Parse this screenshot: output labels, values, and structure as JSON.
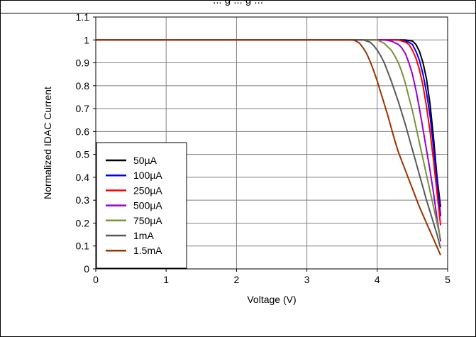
{
  "chart_data": {
    "type": "line",
    "title": "... g ... g ...",
    "xlabel": "Voltage (V)",
    "ylabel": "Normalized IDAC Current",
    "xlim": [
      0,
      5
    ],
    "ylim": [
      0,
      1.1
    ],
    "x_ticks": [
      "0",
      "1",
      "2",
      "3",
      "4",
      "5"
    ],
    "y_ticks": [
      "0",
      "0.1",
      "0.2",
      "0.3",
      "0.4",
      "0.5",
      "0.6",
      "0.7",
      "0.8",
      "0.9",
      "1",
      "1.1"
    ],
    "grid": true,
    "legend_position": "bottom-left",
    "series": [
      {
        "name": "50µA",
        "color": "#000000",
        "x": [
          0,
          4.2,
          4.3,
          4.4,
          4.5,
          4.55,
          4.6,
          4.65,
          4.7,
          4.75,
          4.8,
          4.85,
          4.9
        ],
        "y": [
          1,
          1,
          1,
          1,
          0.995,
          0.98,
          0.95,
          0.9,
          0.83,
          0.72,
          0.57,
          0.4,
          0.27
        ]
      },
      {
        "name": "100µA",
        "color": "#0000ff",
        "x": [
          0,
          4.15,
          4.25,
          4.35,
          4.45,
          4.5,
          4.55,
          4.6,
          4.65,
          4.7,
          4.75,
          4.8,
          4.85,
          4.9
        ],
        "y": [
          1,
          1,
          1,
          1,
          0.99,
          0.98,
          0.95,
          0.91,
          0.85,
          0.77,
          0.67,
          0.53,
          0.38,
          0.23
        ]
      },
      {
        "name": "250µA",
        "color": "#ff0000",
        "x": [
          0,
          4.1,
          4.2,
          4.3,
          4.4,
          4.45,
          4.5,
          4.55,
          4.6,
          4.65,
          4.7,
          4.75,
          4.8,
          4.85,
          4.9
        ],
        "y": [
          1,
          1,
          1,
          1,
          0.99,
          0.98,
          0.955,
          0.92,
          0.87,
          0.8,
          0.71,
          0.6,
          0.47,
          0.33,
          0.19
        ]
      },
      {
        "name": "500µA",
        "color": "#9900cc",
        "x": [
          0,
          4.0,
          4.1,
          4.2,
          4.3,
          4.35,
          4.4,
          4.45,
          4.5,
          4.55,
          4.6,
          4.65,
          4.7,
          4.75,
          4.8,
          4.85,
          4.9
        ],
        "y": [
          1,
          1,
          1,
          0.995,
          0.98,
          0.965,
          0.94,
          0.9,
          0.85,
          0.78,
          0.7,
          0.61,
          0.52,
          0.43,
          0.33,
          0.22,
          0.12
        ]
      },
      {
        "name": "750µA",
        "color": "#77933c",
        "x": [
          0,
          3.9,
          4.0,
          4.1,
          4.2,
          4.25,
          4.3,
          4.35,
          4.4,
          4.45,
          4.5,
          4.55,
          4.6,
          4.65,
          4.7,
          4.75,
          4.8,
          4.85,
          4.9
        ],
        "y": [
          1,
          1,
          1,
          0.985,
          0.955,
          0.93,
          0.9,
          0.86,
          0.81,
          0.75,
          0.69,
          0.62,
          0.55,
          0.48,
          0.41,
          0.34,
          0.27,
          0.2,
          0.13
        ]
      },
      {
        "name": "1mA",
        "color": "#595959",
        "x": [
          0,
          3.8,
          3.9,
          3.95,
          4.0,
          4.05,
          4.1,
          4.15,
          4.2,
          4.25,
          4.3,
          4.35,
          4.4,
          4.45,
          4.5,
          4.55,
          4.6,
          4.65,
          4.7,
          4.75,
          4.8,
          4.85,
          4.9
        ],
        "y": [
          1,
          1,
          0.99,
          0.975,
          0.955,
          0.93,
          0.9,
          0.86,
          0.82,
          0.775,
          0.73,
          0.68,
          0.63,
          0.575,
          0.52,
          0.465,
          0.41,
          0.355,
          0.3,
          0.25,
          0.2,
          0.15,
          0.09
        ]
      },
      {
        "name": "1.5mA",
        "color": "#993300",
        "x": [
          0,
          3.65,
          3.7,
          3.75,
          3.8,
          3.85,
          3.9,
          3.95,
          4.0,
          4.05,
          4.1,
          4.15,
          4.2,
          4.25,
          4.3,
          4.35,
          4.4,
          4.45,
          4.5,
          4.55,
          4.6,
          4.65,
          4.7,
          4.75,
          4.8,
          4.85,
          4.9
        ],
        "y": [
          1,
          1,
          0.995,
          0.985,
          0.965,
          0.94,
          0.905,
          0.865,
          0.82,
          0.77,
          0.72,
          0.67,
          0.615,
          0.56,
          0.51,
          0.47,
          0.43,
          0.39,
          0.35,
          0.31,
          0.27,
          0.235,
          0.2,
          0.165,
          0.13,
          0.095,
          0.06
        ]
      }
    ]
  }
}
